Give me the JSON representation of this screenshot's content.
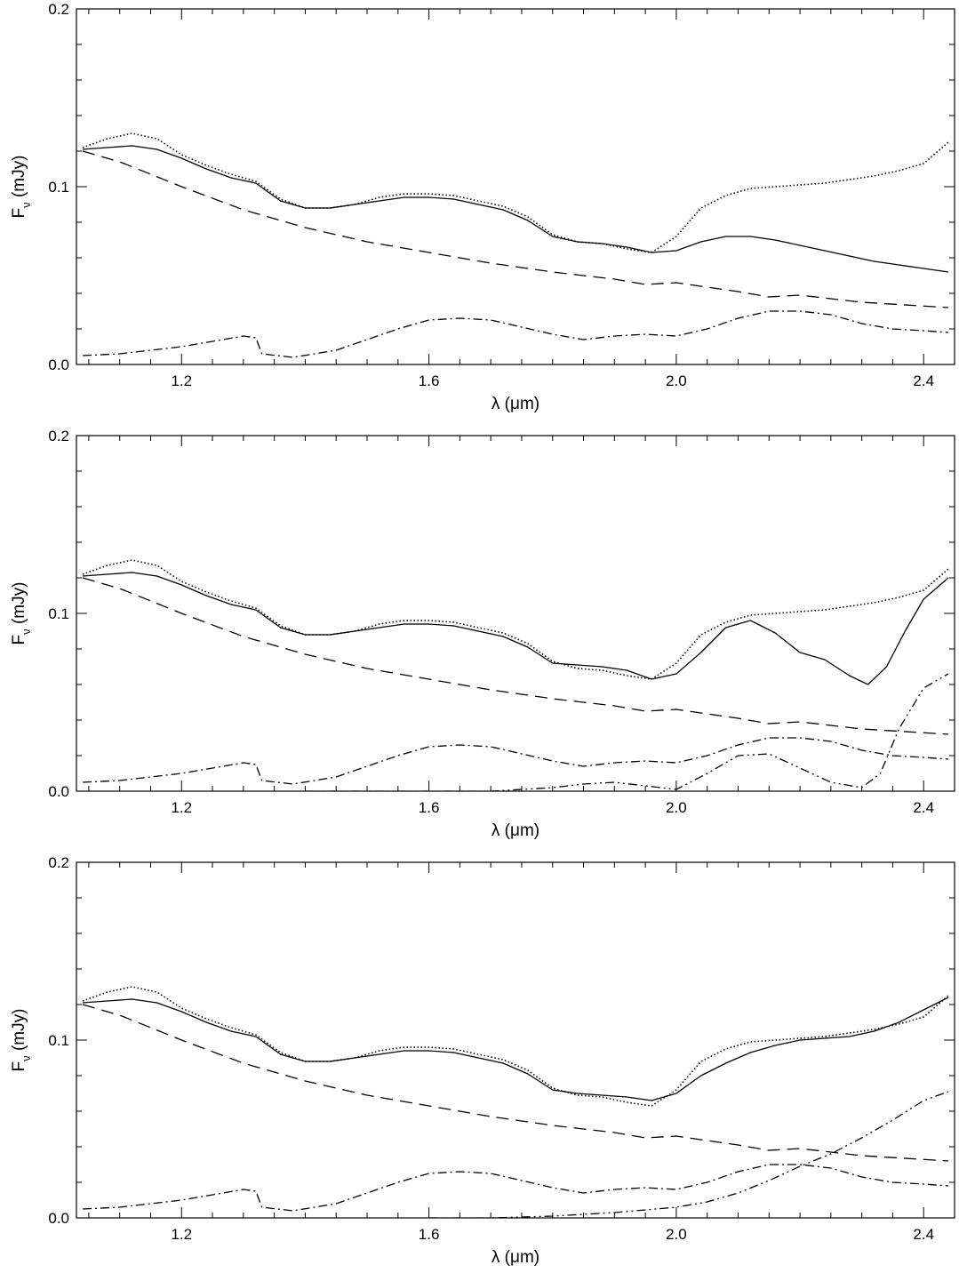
{
  "chart_data": [
    {
      "type": "line",
      "xlabel": "λ (μm)",
      "ylabel": "F_ν (mJy)",
      "xlim": [
        1.03,
        2.45
      ],
      "ylim": [
        0,
        0.2
      ],
      "x_ticks": [
        "1.2",
        "1.6",
        "2.0",
        "2.4"
      ],
      "x_tick_values": [
        1.2,
        1.6,
        2.0,
        2.4
      ],
      "y_ticks": [
        "0.0",
        "0.1",
        "0.2"
      ],
      "y_tick_values": [
        0.0,
        0.1,
        0.2
      ],
      "series": [
        {
          "style": "dotted",
          "x": [
            1.04,
            1.08,
            1.12,
            1.16,
            1.2,
            1.24,
            1.28,
            1.32,
            1.36,
            1.4,
            1.44,
            1.48,
            1.52,
            1.56,
            1.6,
            1.64,
            1.68,
            1.72,
            1.76,
            1.8,
            1.84,
            1.88,
            1.92,
            1.96,
            2.0,
            2.04,
            2.08,
            2.12,
            2.16,
            2.2,
            2.24,
            2.28,
            2.32,
            2.36,
            2.4,
            2.44
          ],
          "y": [
            0.122,
            0.127,
            0.13,
            0.127,
            0.118,
            0.112,
            0.107,
            0.103,
            0.093,
            0.088,
            0.088,
            0.09,
            0.094,
            0.096,
            0.096,
            0.095,
            0.092,
            0.089,
            0.083,
            0.073,
            0.069,
            0.068,
            0.065,
            0.063,
            0.072,
            0.088,
            0.095,
            0.099,
            0.1,
            0.101,
            0.102,
            0.104,
            0.106,
            0.109,
            0.113,
            0.125
          ]
        },
        {
          "style": "solid",
          "x": [
            1.04,
            1.08,
            1.12,
            1.16,
            1.2,
            1.24,
            1.28,
            1.32,
            1.36,
            1.4,
            1.44,
            1.48,
            1.52,
            1.56,
            1.6,
            1.64,
            1.68,
            1.72,
            1.76,
            1.8,
            1.84,
            1.88,
            1.92,
            1.96,
            2.0,
            2.04,
            2.08,
            2.12,
            2.16,
            2.2,
            2.24,
            2.28,
            2.32,
            2.36,
            2.4,
            2.44
          ],
          "y": [
            0.121,
            0.122,
            0.123,
            0.121,
            0.116,
            0.11,
            0.105,
            0.102,
            0.092,
            0.088,
            0.088,
            0.09,
            0.092,
            0.094,
            0.094,
            0.093,
            0.09,
            0.087,
            0.081,
            0.072,
            0.069,
            0.068,
            0.066,
            0.063,
            0.064,
            0.069,
            0.072,
            0.072,
            0.07,
            0.067,
            0.064,
            0.061,
            0.058,
            0.056,
            0.054,
            0.052
          ]
        },
        {
          "style": "dashed",
          "x": [
            1.04,
            1.1,
            1.2,
            1.3,
            1.4,
            1.5,
            1.6,
            1.7,
            1.8,
            1.9,
            1.95,
            2.0,
            2.1,
            2.15,
            2.2,
            2.3,
            2.44
          ],
          "y": [
            0.12,
            0.114,
            0.1,
            0.087,
            0.077,
            0.069,
            0.063,
            0.057,
            0.052,
            0.048,
            0.045,
            0.046,
            0.041,
            0.038,
            0.039,
            0.035,
            0.032
          ]
        },
        {
          "style": "dashdot",
          "x": [
            1.04,
            1.1,
            1.2,
            1.3,
            1.32,
            1.33,
            1.38,
            1.45,
            1.55,
            1.6,
            1.65,
            1.7,
            1.75,
            1.8,
            1.85,
            1.9,
            1.95,
            2.0,
            2.05,
            2.1,
            2.15,
            2.2,
            2.25,
            2.3,
            2.35,
            2.4,
            2.44
          ],
          "y": [
            0.005,
            0.006,
            0.01,
            0.016,
            0.015,
            0.006,
            0.004,
            0.008,
            0.02,
            0.025,
            0.026,
            0.025,
            0.021,
            0.017,
            0.014,
            0.016,
            0.017,
            0.016,
            0.02,
            0.026,
            0.03,
            0.03,
            0.028,
            0.023,
            0.02,
            0.019,
            0.018
          ]
        }
      ]
    },
    {
      "type": "line",
      "xlabel": "λ (μm)",
      "ylabel": "F_ν (mJy)",
      "xlim": [
        1.03,
        2.45
      ],
      "ylim": [
        0,
        0.2
      ],
      "x_ticks": [
        "1.2",
        "1.6",
        "2.0",
        "2.4"
      ],
      "x_tick_values": [
        1.2,
        1.6,
        2.0,
        2.4
      ],
      "y_ticks": [
        "0.0",
        "0.1",
        "0.2"
      ],
      "y_tick_values": [
        0.0,
        0.1,
        0.2
      ],
      "series": [
        {
          "style": "dotted",
          "x": [
            1.04,
            1.08,
            1.12,
            1.16,
            1.2,
            1.24,
            1.28,
            1.32,
            1.36,
            1.4,
            1.44,
            1.48,
            1.52,
            1.56,
            1.6,
            1.64,
            1.68,
            1.72,
            1.76,
            1.8,
            1.84,
            1.88,
            1.92,
            1.96,
            2.0,
            2.04,
            2.08,
            2.12,
            2.16,
            2.2,
            2.24,
            2.28,
            2.32,
            2.36,
            2.4,
            2.44
          ],
          "y": [
            0.122,
            0.127,
            0.13,
            0.127,
            0.118,
            0.112,
            0.107,
            0.103,
            0.093,
            0.088,
            0.088,
            0.09,
            0.094,
            0.096,
            0.096,
            0.095,
            0.092,
            0.089,
            0.083,
            0.073,
            0.069,
            0.068,
            0.065,
            0.063,
            0.072,
            0.088,
            0.095,
            0.099,
            0.1,
            0.101,
            0.102,
            0.104,
            0.106,
            0.109,
            0.113,
            0.125
          ]
        },
        {
          "style": "solid",
          "x": [
            1.04,
            1.08,
            1.12,
            1.16,
            1.2,
            1.24,
            1.28,
            1.32,
            1.36,
            1.4,
            1.44,
            1.48,
            1.52,
            1.56,
            1.6,
            1.64,
            1.68,
            1.72,
            1.76,
            1.8,
            1.84,
            1.88,
            1.92,
            1.96,
            2.0,
            2.04,
            2.08,
            2.12,
            2.16,
            2.2,
            2.24,
            2.28,
            2.31,
            2.34,
            2.37,
            2.4,
            2.44
          ],
          "y": [
            0.121,
            0.122,
            0.123,
            0.121,
            0.116,
            0.11,
            0.105,
            0.102,
            0.092,
            0.088,
            0.088,
            0.09,
            0.092,
            0.094,
            0.094,
            0.093,
            0.09,
            0.087,
            0.081,
            0.072,
            0.071,
            0.07,
            0.068,
            0.063,
            0.066,
            0.078,
            0.092,
            0.096,
            0.089,
            0.078,
            0.074,
            0.065,
            0.06,
            0.07,
            0.09,
            0.108,
            0.12
          ]
        },
        {
          "style": "dashed",
          "x": [
            1.04,
            1.1,
            1.2,
            1.3,
            1.4,
            1.5,
            1.6,
            1.7,
            1.8,
            1.9,
            1.95,
            2.0,
            2.1,
            2.15,
            2.2,
            2.3,
            2.44
          ],
          "y": [
            0.12,
            0.114,
            0.1,
            0.087,
            0.077,
            0.069,
            0.063,
            0.057,
            0.052,
            0.048,
            0.045,
            0.046,
            0.041,
            0.038,
            0.039,
            0.035,
            0.032
          ]
        },
        {
          "style": "dashdot",
          "x": [
            1.04,
            1.1,
            1.2,
            1.3,
            1.32,
            1.33,
            1.38,
            1.45,
            1.55,
            1.6,
            1.65,
            1.7,
            1.75,
            1.8,
            1.85,
            1.9,
            1.95,
            2.0,
            2.05,
            2.1,
            2.15,
            2.2,
            2.25,
            2.3,
            2.35,
            2.4,
            2.44
          ],
          "y": [
            0.005,
            0.006,
            0.01,
            0.016,
            0.015,
            0.006,
            0.004,
            0.008,
            0.02,
            0.025,
            0.026,
            0.025,
            0.021,
            0.017,
            0.014,
            0.016,
            0.017,
            0.016,
            0.02,
            0.026,
            0.03,
            0.03,
            0.028,
            0.023,
            0.02,
            0.019,
            0.018
          ]
        },
        {
          "style": "dashdotdot",
          "x": [
            1.4,
            1.6,
            1.7,
            1.75,
            1.8,
            1.85,
            1.9,
            1.95,
            2.0,
            2.05,
            2.1,
            2.15,
            2.2,
            2.25,
            2.3,
            2.33,
            2.36,
            2.4,
            2.44
          ],
          "y": [
            0.0,
            0.0,
            0.0,
            0.001,
            0.002,
            0.004,
            0.005,
            0.003,
            0.001,
            0.01,
            0.02,
            0.021,
            0.013,
            0.005,
            0.002,
            0.01,
            0.035,
            0.058,
            0.066
          ]
        }
      ]
    },
    {
      "type": "line",
      "xlabel": "λ (μm)",
      "ylabel": "F_ν (mJy)",
      "xlim": [
        1.03,
        2.45
      ],
      "ylim": [
        0,
        0.2
      ],
      "x_ticks": [
        "1.2",
        "1.6",
        "2.0",
        "2.4"
      ],
      "x_tick_values": [
        1.2,
        1.6,
        2.0,
        2.4
      ],
      "y_ticks": [
        "0.0",
        "0.1",
        "0.2"
      ],
      "y_tick_values": [
        0.0,
        0.1,
        0.2
      ],
      "series": [
        {
          "style": "dotted",
          "x": [
            1.04,
            1.08,
            1.12,
            1.16,
            1.2,
            1.24,
            1.28,
            1.32,
            1.36,
            1.4,
            1.44,
            1.48,
            1.52,
            1.56,
            1.6,
            1.64,
            1.68,
            1.72,
            1.76,
            1.8,
            1.84,
            1.88,
            1.92,
            1.96,
            2.0,
            2.04,
            2.08,
            2.12,
            2.16,
            2.2,
            2.24,
            2.28,
            2.32,
            2.36,
            2.4,
            2.44
          ],
          "y": [
            0.122,
            0.127,
            0.13,
            0.127,
            0.118,
            0.112,
            0.107,
            0.103,
            0.093,
            0.088,
            0.088,
            0.09,
            0.094,
            0.096,
            0.096,
            0.095,
            0.092,
            0.089,
            0.083,
            0.073,
            0.069,
            0.068,
            0.065,
            0.063,
            0.072,
            0.088,
            0.095,
            0.099,
            0.1,
            0.101,
            0.102,
            0.104,
            0.106,
            0.109,
            0.113,
            0.125
          ]
        },
        {
          "style": "solid",
          "x": [
            1.04,
            1.08,
            1.12,
            1.16,
            1.2,
            1.24,
            1.28,
            1.32,
            1.36,
            1.4,
            1.44,
            1.48,
            1.52,
            1.56,
            1.6,
            1.64,
            1.68,
            1.72,
            1.76,
            1.8,
            1.84,
            1.88,
            1.92,
            1.96,
            2.0,
            2.04,
            2.08,
            2.12,
            2.16,
            2.2,
            2.24,
            2.28,
            2.32,
            2.36,
            2.4,
            2.44
          ],
          "y": [
            0.121,
            0.122,
            0.123,
            0.121,
            0.116,
            0.11,
            0.105,
            0.102,
            0.092,
            0.088,
            0.088,
            0.09,
            0.092,
            0.094,
            0.094,
            0.093,
            0.09,
            0.087,
            0.081,
            0.072,
            0.07,
            0.069,
            0.068,
            0.066,
            0.07,
            0.08,
            0.087,
            0.093,
            0.097,
            0.1,
            0.101,
            0.102,
            0.105,
            0.11,
            0.117,
            0.124
          ]
        },
        {
          "style": "dashed",
          "x": [
            1.04,
            1.1,
            1.2,
            1.3,
            1.4,
            1.5,
            1.6,
            1.7,
            1.8,
            1.9,
            1.95,
            2.0,
            2.1,
            2.15,
            2.2,
            2.3,
            2.44
          ],
          "y": [
            0.12,
            0.114,
            0.1,
            0.087,
            0.077,
            0.069,
            0.063,
            0.057,
            0.052,
            0.048,
            0.045,
            0.046,
            0.041,
            0.038,
            0.039,
            0.035,
            0.032
          ]
        },
        {
          "style": "dashdot",
          "x": [
            1.04,
            1.1,
            1.2,
            1.3,
            1.32,
            1.33,
            1.38,
            1.45,
            1.55,
            1.6,
            1.65,
            1.7,
            1.75,
            1.8,
            1.85,
            1.9,
            1.95,
            2.0,
            2.05,
            2.1,
            2.15,
            2.2,
            2.25,
            2.3,
            2.35,
            2.4,
            2.44
          ],
          "y": [
            0.005,
            0.006,
            0.01,
            0.016,
            0.015,
            0.006,
            0.004,
            0.008,
            0.02,
            0.025,
            0.026,
            0.025,
            0.021,
            0.017,
            0.014,
            0.016,
            0.017,
            0.016,
            0.02,
            0.026,
            0.03,
            0.03,
            0.028,
            0.023,
            0.02,
            0.019,
            0.018
          ]
        },
        {
          "style": "dashdotdot",
          "x": [
            1.6,
            1.7,
            1.8,
            1.9,
            2.0,
            2.05,
            2.1,
            2.15,
            2.2,
            2.25,
            2.3,
            2.35,
            2.4,
            2.44
          ],
          "y": [
            0.0,
            0.0,
            0.001,
            0.003,
            0.006,
            0.009,
            0.014,
            0.021,
            0.029,
            0.036,
            0.045,
            0.055,
            0.066,
            0.071
          ]
        }
      ]
    }
  ]
}
